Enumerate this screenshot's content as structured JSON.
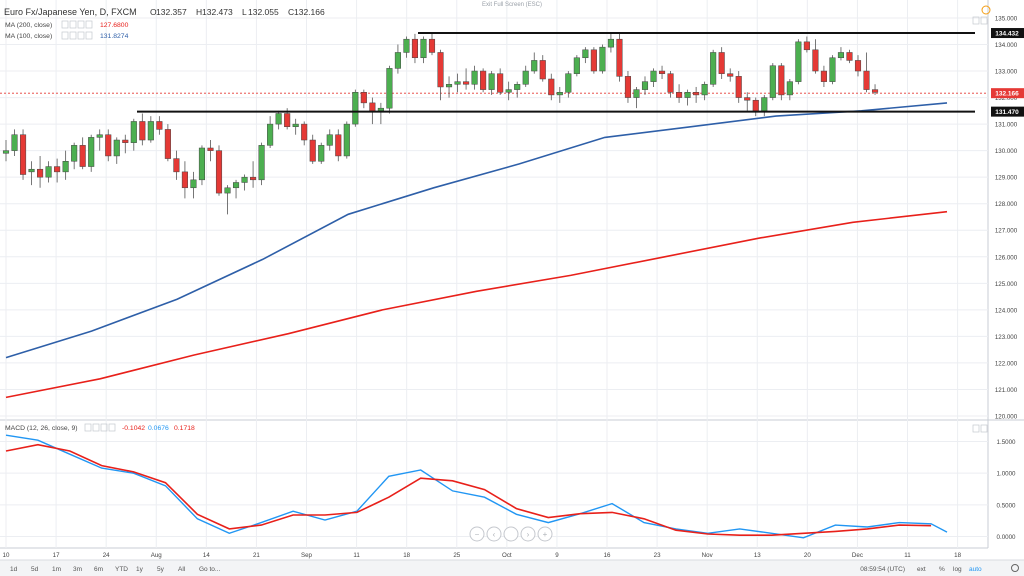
{
  "header": {
    "symbol": "Euro Fx/Japanese Yen, D, FXCM",
    "ohlc": [
      {
        "k": "O",
        "v": "132.357"
      },
      {
        "k": "H",
        "v": "132.473"
      },
      {
        "k": "L",
        "v": "132.055"
      },
      {
        "k": "C",
        "v": "132.166"
      }
    ],
    "exit_fullscreen": "Exit Full Screen (ESC)"
  },
  "indicators": {
    "ma200": {
      "label": "MA (200, close)",
      "value": "127.6800",
      "color": "#e8201a"
    },
    "ma100": {
      "label": "MA (100, close)",
      "value": "131.8274",
      "color": "#2e5fa8"
    },
    "macd": {
      "label": "MACD (12, 26, close, 9)",
      "values": [
        {
          "v": "-0.1042",
          "color": "#e8201a"
        },
        {
          "v": "0.0676",
          "color": "#2196f3"
        },
        {
          "v": "0.1718",
          "color": "#e8201a"
        }
      ]
    }
  },
  "price_badges": {
    "last": "132.166",
    "resistance": "134.432",
    "support": "131.470"
  },
  "price_axis": [
    "135.000",
    "134.000",
    "133.000",
    "132.000",
    "131.000",
    "130.000",
    "129.000",
    "128.000",
    "127.000",
    "126.000",
    "125.000",
    "124.000",
    "123.000",
    "122.000",
    "121.000",
    "120.000"
  ],
  "macd_axis": [
    "1.5000",
    "1.0000",
    "0.5000",
    "0.0000"
  ],
  "time_axis": [
    "10",
    "17",
    "24",
    "Aug",
    "14",
    "21",
    "Sep",
    "11",
    "18",
    "25",
    "Oct",
    "9",
    "16",
    "23",
    "Nov",
    "13",
    "20",
    "Dec",
    "11",
    "18"
  ],
  "bottom_bar": {
    "ranges": [
      "1d",
      "5d",
      "1m",
      "3m",
      "6m",
      "YTD",
      "1y",
      "5y",
      "All",
      "Go to..."
    ],
    "clock": "08:59:54 (UTC)",
    "toggles": [
      "ext",
      "%",
      "log",
      "auto"
    ]
  },
  "colors": {
    "up": "#4caf50",
    "down": "#e53935",
    "grid": "#eceef2",
    "ma100": "#2e5fa8",
    "ma200": "#e8201a",
    "macd": "#2196f3",
    "signal": "#e8201a"
  },
  "chart_data": {
    "type": "candlestick",
    "title": "Euro Fx/Japanese Yen, D, FXCM",
    "ylim": [
      120,
      135
    ],
    "candles": [
      [
        129.9,
        130.4,
        129.6,
        130.0
      ],
      [
        130.0,
        130.8,
        129.8,
        130.6
      ],
      [
        130.6,
        130.8,
        128.9,
        129.1
      ],
      [
        129.2,
        129.6,
        128.7,
        129.3
      ],
      [
        129.3,
        129.8,
        128.6,
        129.0
      ],
      [
        129.0,
        129.6,
        128.8,
        129.4
      ],
      [
        129.4,
        129.7,
        128.8,
        129.2
      ],
      [
        129.2,
        130.0,
        128.9,
        129.6
      ],
      [
        129.6,
        130.3,
        129.3,
        130.2
      ],
      [
        130.2,
        130.5,
        129.3,
        129.4
      ],
      [
        129.4,
        130.6,
        129.2,
        130.5
      ],
      [
        130.5,
        130.8,
        130.0,
        130.6
      ],
      [
        130.6,
        130.8,
        129.6,
        129.8
      ],
      [
        129.8,
        130.5,
        129.5,
        130.4
      ],
      [
        130.4,
        130.6,
        129.9,
        130.3
      ],
      [
        130.3,
        131.2,
        130.0,
        131.1
      ],
      [
        131.1,
        131.4,
        130.2,
        130.4
      ],
      [
        130.4,
        131.3,
        130.3,
        131.1
      ],
      [
        131.1,
        131.3,
        130.6,
        130.8
      ],
      [
        130.8,
        131.0,
        129.6,
        129.7
      ],
      [
        129.7,
        130.0,
        128.9,
        129.2
      ],
      [
        129.2,
        129.6,
        128.2,
        128.6
      ],
      [
        128.6,
        129.2,
        128.2,
        128.9
      ],
      [
        128.9,
        130.2,
        128.7,
        130.1
      ],
      [
        130.1,
        130.4,
        129.6,
        130.0
      ],
      [
        130.0,
        130.2,
        128.3,
        128.4
      ],
      [
        128.4,
        128.7,
        127.6,
        128.6
      ],
      [
        128.6,
        128.9,
        128.2,
        128.8
      ],
      [
        128.8,
        129.1,
        128.5,
        129.0
      ],
      [
        129.0,
        129.6,
        128.6,
        128.9
      ],
      [
        128.9,
        130.3,
        128.7,
        130.2
      ],
      [
        130.2,
        131.3,
        130.1,
        131.0
      ],
      [
        131.0,
        131.5,
        130.8,
        131.4
      ],
      [
        131.4,
        131.6,
        130.8,
        130.9
      ],
      [
        130.9,
        131.2,
        130.6,
        131.0
      ],
      [
        131.0,
        131.1,
        130.2,
        130.4
      ],
      [
        130.4,
        130.6,
        129.5,
        129.6
      ],
      [
        129.6,
        130.3,
        129.5,
        130.2
      ],
      [
        130.2,
        130.8,
        130.0,
        130.6
      ],
      [
        130.6,
        130.8,
        129.6,
        129.8
      ],
      [
        129.8,
        131.1,
        129.7,
        131.0
      ],
      [
        131.0,
        132.3,
        130.9,
        132.2
      ],
      [
        132.2,
        132.3,
        131.6,
        131.8
      ],
      [
        131.8,
        132.0,
        131.0,
        131.5
      ],
      [
        131.5,
        131.8,
        131.0,
        131.6
      ],
      [
        131.6,
        133.2,
        131.4,
        133.1
      ],
      [
        133.1,
        134.0,
        132.9,
        133.7
      ],
      [
        133.7,
        134.3,
        133.5,
        134.2
      ],
      [
        134.2,
        134.4,
        133.3,
        133.5
      ],
      [
        133.5,
        134.3,
        133.3,
        134.2
      ],
      [
        134.2,
        134.4,
        133.6,
        133.7
      ],
      [
        133.7,
        133.8,
        131.9,
        132.4
      ],
      [
        132.4,
        132.8,
        132.0,
        132.5
      ],
      [
        132.5,
        132.9,
        132.2,
        132.6
      ],
      [
        132.6,
        133.1,
        132.3,
        132.5
      ],
      [
        132.5,
        133.2,
        132.3,
        133.0
      ],
      [
        133.0,
        133.1,
        132.2,
        132.3
      ],
      [
        132.3,
        133.0,
        132.1,
        132.9
      ],
      [
        132.9,
        133.1,
        132.1,
        132.2
      ],
      [
        132.2,
        132.6,
        131.9,
        132.3
      ],
      [
        132.3,
        132.6,
        132.0,
        132.5
      ],
      [
        132.5,
        133.2,
        132.4,
        133.0
      ],
      [
        133.0,
        133.7,
        132.9,
        133.4
      ],
      [
        133.4,
        133.6,
        132.6,
        132.7
      ],
      [
        132.7,
        132.9,
        131.9,
        132.1
      ],
      [
        132.1,
        132.4,
        131.8,
        132.2
      ],
      [
        132.2,
        133.0,
        132.0,
        132.9
      ],
      [
        132.9,
        133.6,
        132.8,
        133.5
      ],
      [
        133.5,
        133.9,
        133.3,
        133.8
      ],
      [
        133.8,
        133.9,
        132.9,
        133.0
      ],
      [
        133.0,
        134.0,
        132.9,
        133.9
      ],
      [
        133.9,
        134.4,
        133.7,
        134.2
      ],
      [
        134.2,
        134.4,
        132.6,
        132.8
      ],
      [
        132.8,
        133.0,
        131.8,
        132.0
      ],
      [
        132.0,
        132.4,
        131.6,
        132.3
      ],
      [
        132.3,
        132.8,
        132.1,
        132.6
      ],
      [
        132.6,
        133.1,
        132.4,
        133.0
      ],
      [
        133.0,
        133.2,
        132.7,
        132.9
      ],
      [
        132.9,
        133.0,
        132.0,
        132.2
      ],
      [
        132.2,
        132.5,
        131.8,
        132.0
      ],
      [
        132.0,
        132.3,
        131.7,
        132.2
      ],
      [
        132.2,
        132.4,
        131.8,
        132.1
      ],
      [
        132.1,
        132.6,
        131.9,
        132.5
      ],
      [
        132.5,
        133.8,
        132.4,
        133.7
      ],
      [
        133.7,
        133.9,
        132.7,
        132.9
      ],
      [
        132.9,
        133.1,
        132.6,
        132.8
      ],
      [
        132.8,
        133.0,
        131.8,
        132.0
      ],
      [
        132.0,
        132.2,
        131.5,
        131.9
      ],
      [
        131.9,
        132.0,
        131.3,
        131.5
      ],
      [
        131.5,
        132.1,
        131.3,
        132.0
      ],
      [
        132.0,
        133.3,
        131.9,
        133.2
      ],
      [
        133.2,
        133.3,
        131.9,
        132.1
      ],
      [
        132.1,
        132.7,
        131.9,
        132.6
      ],
      [
        132.6,
        134.2,
        132.5,
        134.1
      ],
      [
        134.1,
        134.3,
        133.7,
        133.8
      ],
      [
        133.8,
        134.2,
        132.9,
        133.0
      ],
      [
        133.0,
        133.2,
        132.4,
        132.6
      ],
      [
        132.6,
        133.6,
        132.5,
        133.5
      ],
      [
        133.5,
        133.9,
        133.4,
        133.7
      ],
      [
        133.7,
        133.8,
        133.3,
        133.4
      ],
      [
        133.4,
        133.6,
        132.8,
        133.0
      ],
      [
        133.0,
        133.7,
        132.2,
        132.3
      ],
      [
        132.3,
        132.5,
        132.1,
        132.2
      ]
    ],
    "ma100": [
      [
        0,
        122.2
      ],
      [
        15,
        123.2
      ],
      [
        30,
        124.4
      ],
      [
        45,
        125.9
      ],
      [
        60,
        127.6
      ],
      [
        75,
        128.6
      ],
      [
        90,
        129.5
      ],
      [
        105,
        130.5
      ],
      [
        120,
        130.9
      ],
      [
        135,
        131.3
      ],
      [
        150,
        131.5
      ],
      [
        165,
        131.8
      ]
    ],
    "ma200": [
      [
        0,
        120.7
      ],
      [
        20,
        121.4
      ],
      [
        40,
        122.3
      ],
      [
        60,
        123.1
      ],
      [
        80,
        124.0
      ],
      [
        100,
        124.7
      ],
      [
        120,
        125.3
      ],
      [
        140,
        126.0
      ],
      [
        160,
        126.7
      ],
      [
        180,
        127.3
      ],
      [
        200,
        127.7
      ]
    ],
    "macd_axis_range": [
      -0.15,
      1.65
    ],
    "macd": [
      [
        0,
        1.6
      ],
      [
        8,
        1.52
      ],
      [
        16,
        1.3
      ],
      [
        24,
        1.08
      ],
      [
        32,
        1.0
      ],
      [
        40,
        0.8
      ],
      [
        48,
        0.28
      ],
      [
        56,
        0.05
      ],
      [
        64,
        0.22
      ],
      [
        72,
        0.4
      ],
      [
        80,
        0.26
      ],
      [
        88,
        0.4
      ],
      [
        96,
        0.95
      ],
      [
        104,
        1.05
      ],
      [
        112,
        0.72
      ],
      [
        120,
        0.62
      ],
      [
        128,
        0.35
      ],
      [
        136,
        0.22
      ],
      [
        144,
        0.36
      ],
      [
        152,
        0.52
      ],
      [
        160,
        0.22
      ],
      [
        168,
        0.12
      ],
      [
        176,
        0.05
      ],
      [
        184,
        0.12
      ],
      [
        192,
        0.05
      ],
      [
        200,
        -0.02
      ],
      [
        208,
        0.18
      ],
      [
        216,
        0.15
      ],
      [
        224,
        0.22
      ],
      [
        232,
        0.2
      ],
      [
        236,
        0.07
      ]
    ],
    "signal": [
      [
        0,
        1.35
      ],
      [
        8,
        1.45
      ],
      [
        16,
        1.35
      ],
      [
        24,
        1.12
      ],
      [
        32,
        1.02
      ],
      [
        40,
        0.85
      ],
      [
        48,
        0.35
      ],
      [
        56,
        0.12
      ],
      [
        64,
        0.18
      ],
      [
        72,
        0.34
      ],
      [
        80,
        0.34
      ],
      [
        88,
        0.38
      ],
      [
        96,
        0.62
      ],
      [
        104,
        0.92
      ],
      [
        112,
        0.88
      ],
      [
        120,
        0.74
      ],
      [
        128,
        0.44
      ],
      [
        136,
        0.3
      ],
      [
        144,
        0.36
      ],
      [
        152,
        0.38
      ],
      [
        160,
        0.28
      ],
      [
        168,
        0.1
      ],
      [
        176,
        0.04
      ],
      [
        184,
        0.02
      ],
      [
        192,
        0.02
      ],
      [
        200,
        0.05
      ],
      [
        208,
        0.08
      ],
      [
        216,
        0.12
      ],
      [
        224,
        0.18
      ],
      [
        232,
        0.17
      ]
    ]
  }
}
